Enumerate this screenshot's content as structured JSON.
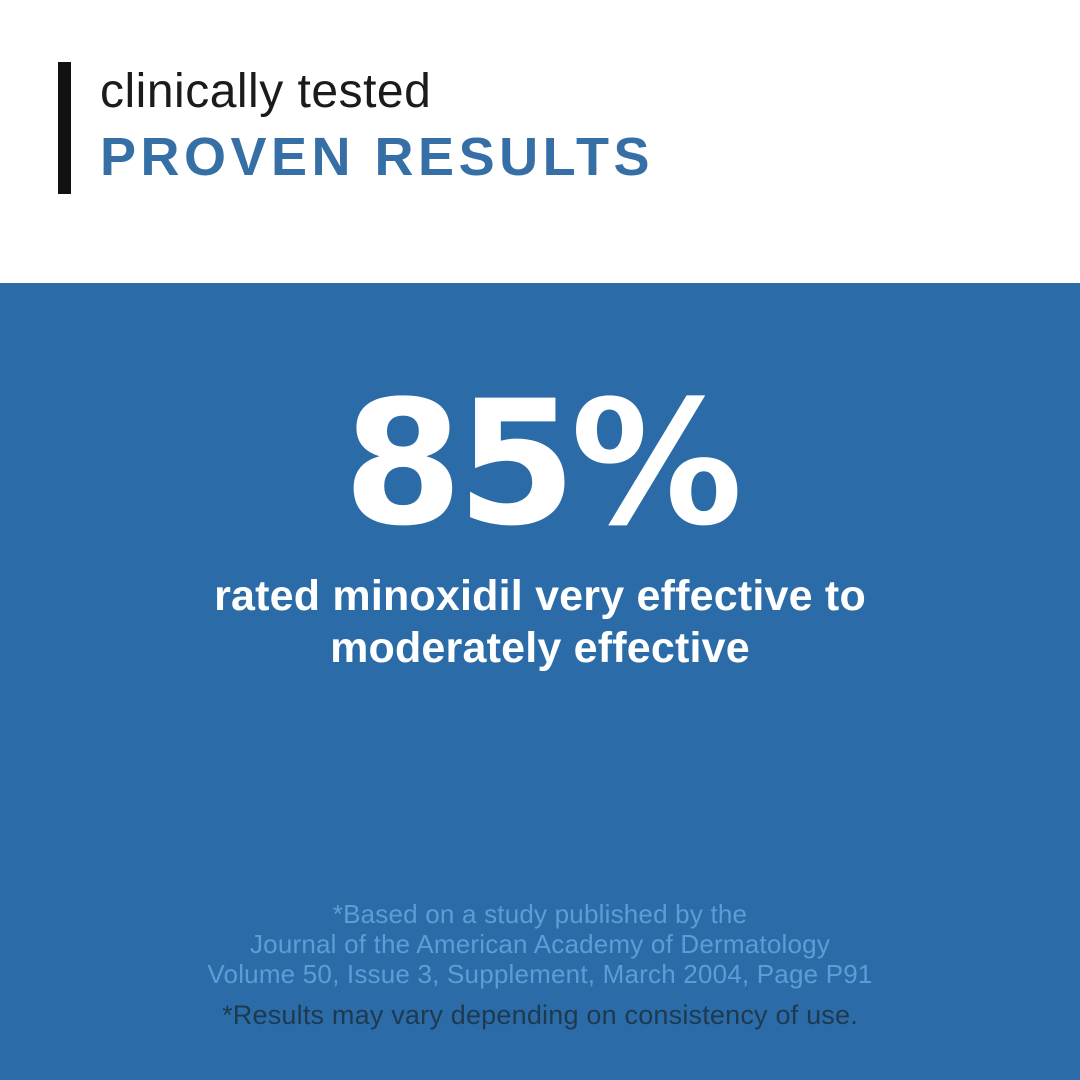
{
  "header": {
    "eyebrow": "clinically tested",
    "title": "PROVEN RESULTS"
  },
  "stat": {
    "value": "85%",
    "line1": "rated minoxidil very effective to",
    "line2": "moderately effective"
  },
  "citation": {
    "line1": "*Based on a study published by the",
    "line2": "Journal of the American Academy of Dermatology",
    "line3": "Volume 50, Issue 3, Supplement, March 2004, Page P91"
  },
  "disclaimer": {
    "text": "*Results may vary depending on consistency of use."
  },
  "colors": {
    "panel_blue": "#2b6ca8",
    "heading_blue": "#366fa6",
    "citation_light_blue": "#5e9dd4",
    "disclaimer_dark": "#1e3a50",
    "accent_bar_black": "#111111",
    "eyebrow_text": "#1b1b1b",
    "stat_text": "#ffffff",
    "top_background": "#ffffff"
  }
}
